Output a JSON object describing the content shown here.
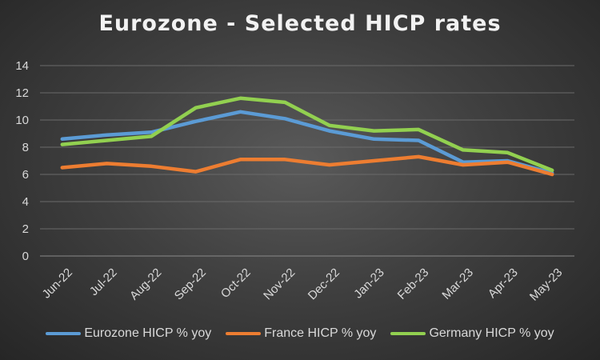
{
  "chart_data": {
    "type": "line",
    "title": "Eurozone - Selected HICP rates",
    "xlabel": "",
    "ylabel": "",
    "categories": [
      "Jun-22",
      "Jul-22",
      "Aug-22",
      "Sep-22",
      "Oct-22",
      "Nov-22",
      "Dec-22",
      "Jan-23",
      "Feb-23",
      "Mar-23",
      "Apr-23",
      "May-23"
    ],
    "ylim": [
      0,
      14
    ],
    "yticks": [
      0,
      2,
      4,
      6,
      8,
      10,
      12,
      14
    ],
    "grid": true,
    "legend_position": "bottom",
    "series": [
      {
        "name": "Eurozone HICP % yoy",
        "color": "#5b9bd5",
        "values": [
          8.6,
          8.9,
          9.1,
          9.9,
          10.6,
          10.1,
          9.2,
          8.6,
          8.5,
          6.9,
          7.0,
          6.1
        ]
      },
      {
        "name": "France HICP % yoy",
        "color": "#ed7d31",
        "values": [
          6.5,
          6.8,
          6.6,
          6.2,
          7.1,
          7.1,
          6.7,
          7.0,
          7.3,
          6.7,
          6.9,
          6.0
        ]
      },
      {
        "name": "Germany HICP % yoy",
        "color": "#92d050",
        "values": [
          8.2,
          8.5,
          8.8,
          10.9,
          11.6,
          11.3,
          9.6,
          9.2,
          9.3,
          7.8,
          7.6,
          6.3
        ]
      }
    ]
  }
}
